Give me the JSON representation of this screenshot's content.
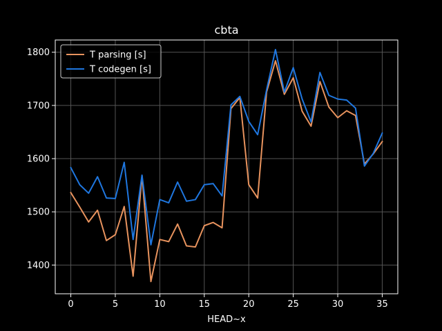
{
  "chart_data": {
    "type": "line",
    "title": "cbta",
    "xlabel": "HEAD~x",
    "ylabel": "",
    "xlim": [
      -1.75,
      36.75
    ],
    "ylim": [
      1346,
      1823
    ],
    "xticks": [
      0,
      5,
      10,
      15,
      20,
      25,
      30,
      35
    ],
    "yticks": [
      1400,
      1500,
      1600,
      1700,
      1800
    ],
    "grid": true,
    "legend_position": "upper-left",
    "background": "#000000",
    "grid_color": "#555555",
    "x": [
      0,
      1,
      2,
      3,
      4,
      5,
      6,
      7,
      8,
      9,
      10,
      11,
      12,
      13,
      14,
      15,
      16,
      17,
      18,
      19,
      20,
      21,
      22,
      23,
      24,
      25,
      26,
      27,
      28,
      29,
      30,
      31,
      32,
      33,
      34,
      35
    ],
    "series": [
      {
        "name": "T parsing [s]",
        "color": "#e8935e",
        "values": [
          1536,
          1509,
          1481,
          1503,
          1446,
          1457,
          1510,
          1379,
          1568,
          1369,
          1448,
          1444,
          1477,
          1436,
          1434,
          1474,
          1480,
          1470,
          1694,
          1715,
          1551,
          1526,
          1725,
          1784,
          1721,
          1752,
          1689,
          1661,
          1745,
          1697,
          1677,
          1690,
          1681,
          1590,
          1609,
          1632
        ]
      },
      {
        "name": "T codegen [s]",
        "color": "#1f77e0",
        "values": [
          1583,
          1551,
          1535,
          1566,
          1526,
          1525,
          1593,
          1448,
          1569,
          1438,
          1523,
          1517,
          1556,
          1520,
          1523,
          1551,
          1553,
          1530,
          1701,
          1717,
          1670,
          1645,
          1729,
          1805,
          1725,
          1771,
          1712,
          1669,
          1762,
          1719,
          1712,
          1710,
          1695,
          1586,
          1610,
          1648
        ]
      }
    ]
  }
}
